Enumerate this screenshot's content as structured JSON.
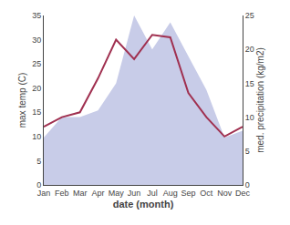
{
  "chart_data": {
    "type": "line",
    "xlabel": "date (month)",
    "ylabel": "max temp (C)",
    "y2label": "med. precipitation (kg/m2)",
    "categories": [
      "Jan",
      "Feb",
      "Mar",
      "Apr",
      "May",
      "Jun",
      "Jul",
      "Aug",
      "Sep",
      "Oct",
      "Nov",
      "Dec"
    ],
    "series": [
      {
        "type": "area",
        "axis": "y2",
        "color": "#c8cce8",
        "values": [
          7,
          10,
          10,
          11,
          15,
          25,
          20,
          24,
          19,
          14,
          7,
          8
        ]
      },
      {
        "type": "line",
        "color": "#a03050",
        "values": [
          12,
          14,
          15,
          22,
          30,
          26,
          31,
          30.5,
          19,
          14,
          10,
          12
        ]
      }
    ],
    "ylim": [
      0,
      35
    ],
    "yticks": [
      0,
      5,
      10,
      15,
      20,
      25,
      30,
      35
    ],
    "y2lim": [
      0,
      25
    ],
    "y2ticks": [
      0,
      5,
      10,
      15,
      20,
      25
    ],
    "grid": false
  }
}
